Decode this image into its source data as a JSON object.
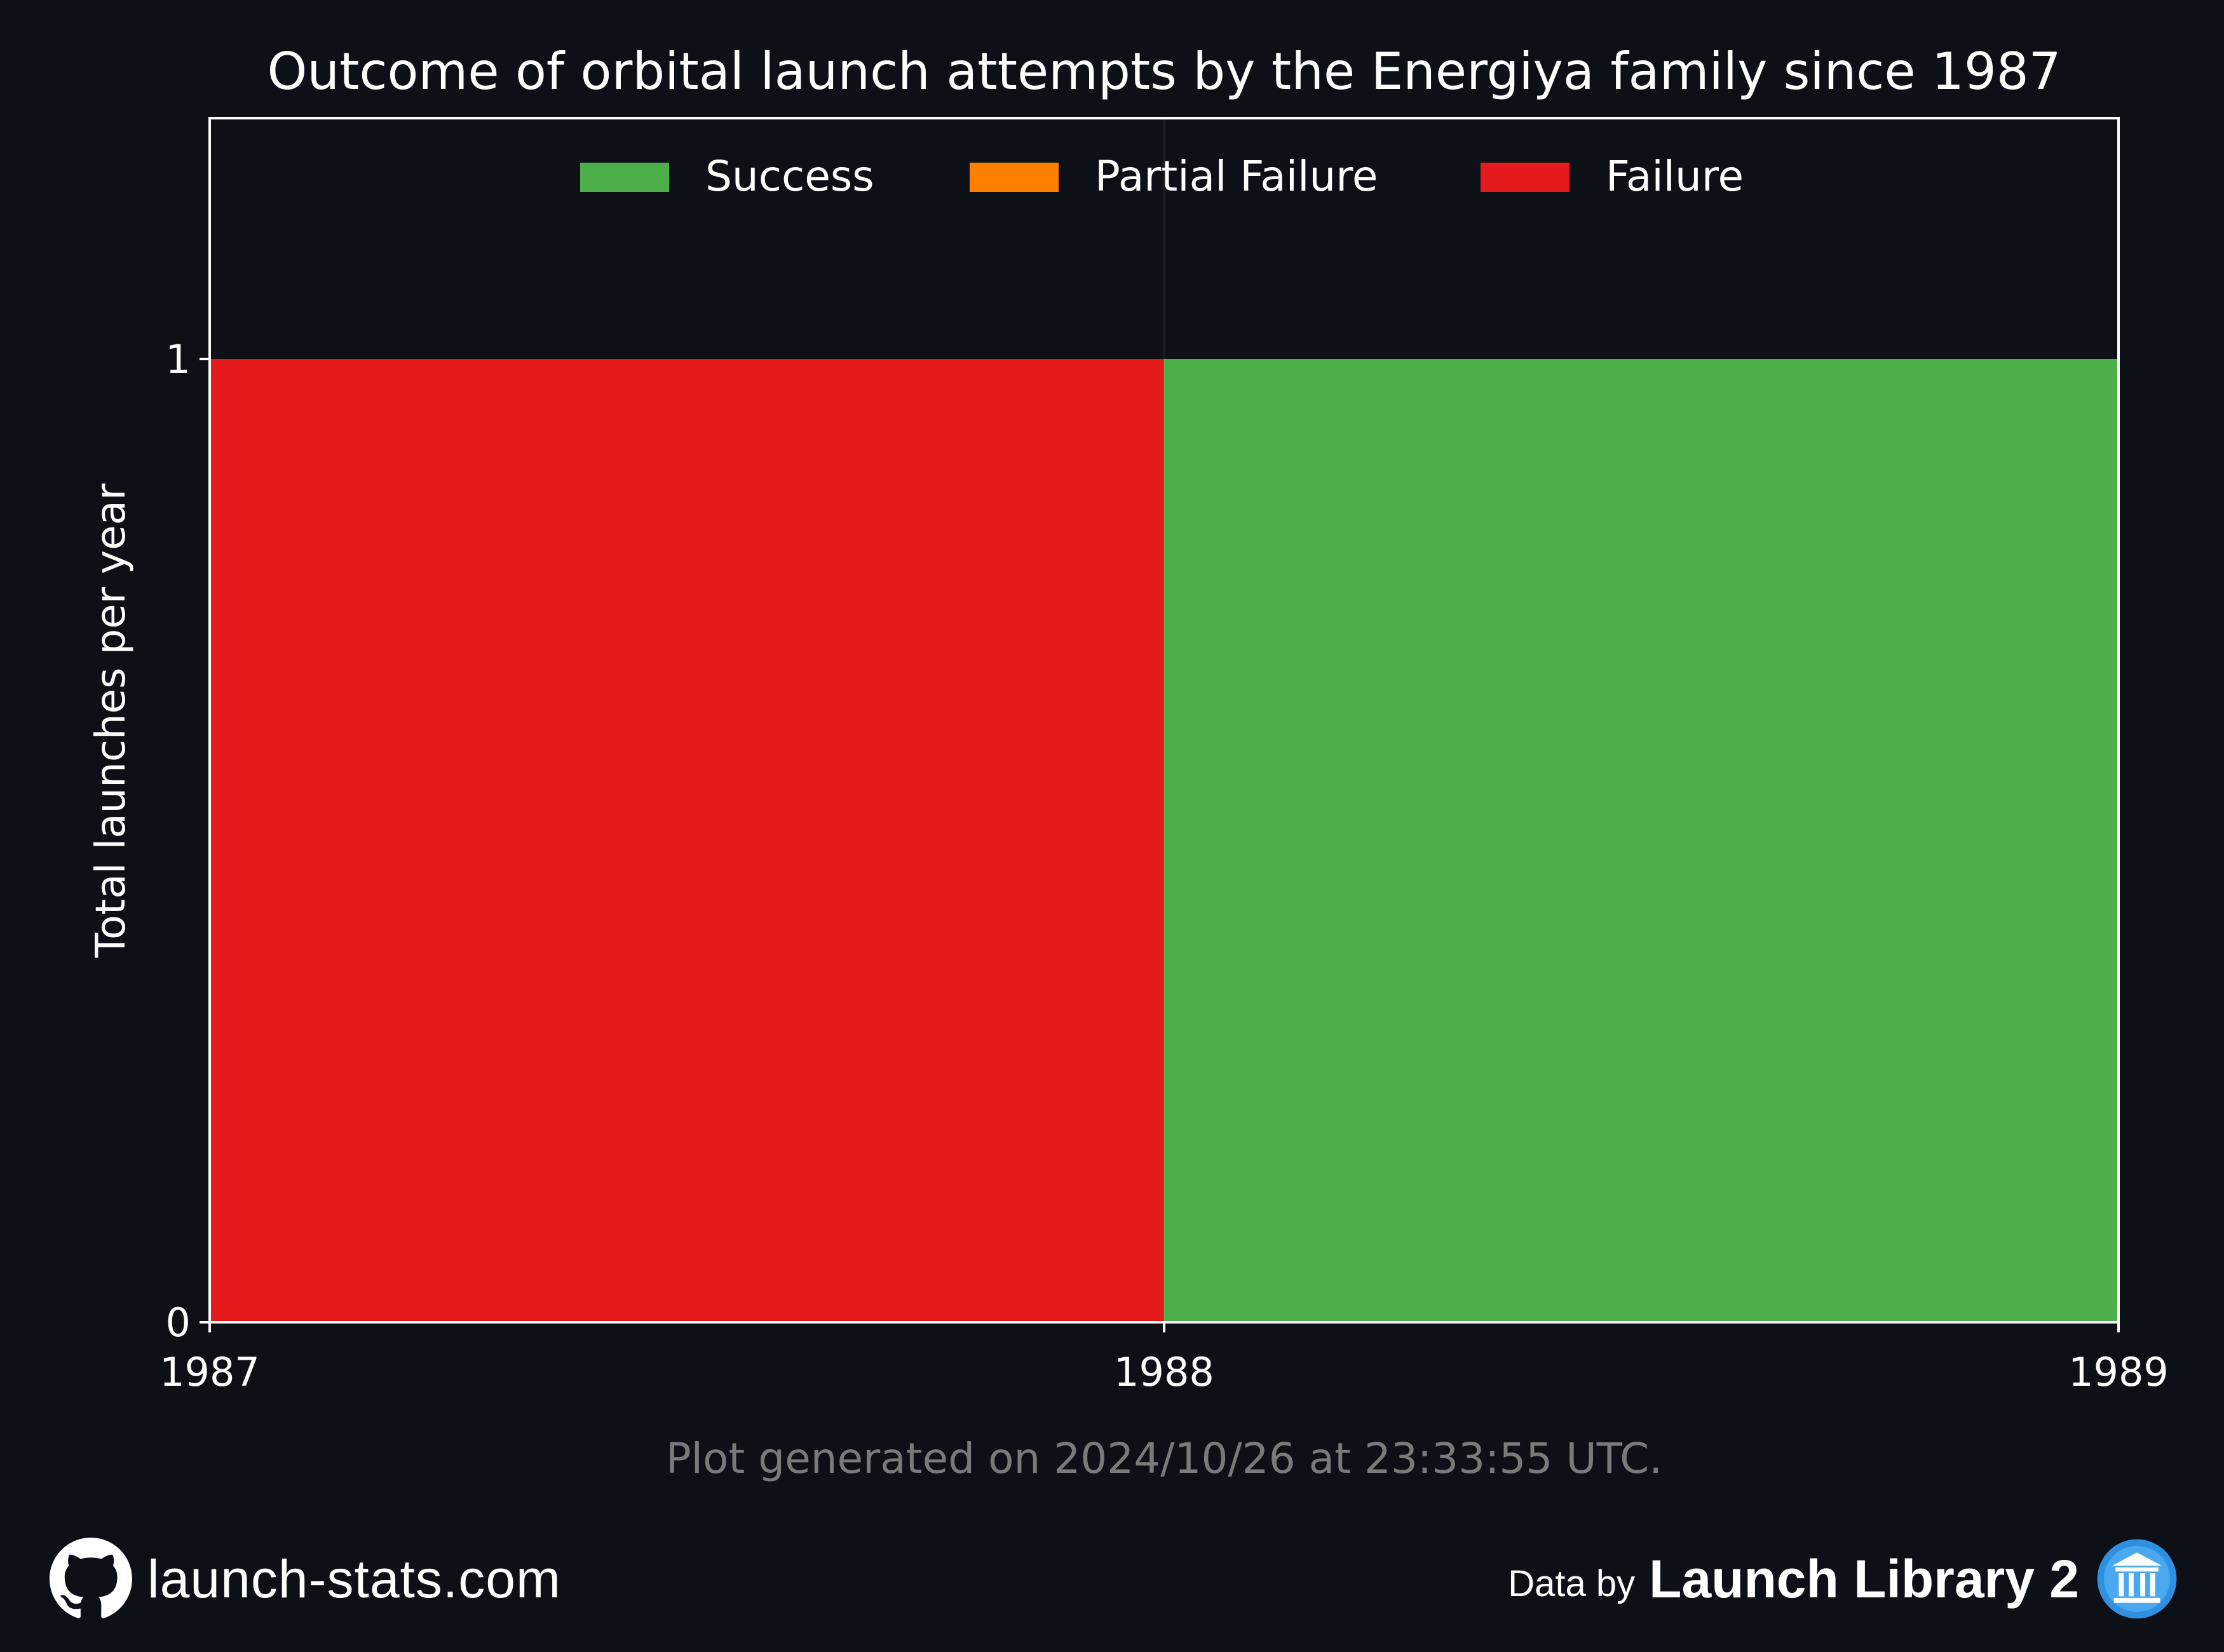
{
  "chart_data": {
    "type": "bar",
    "title": "Outcome of orbital launch attempts by the Energiya family since 1987",
    "xlabel": "",
    "ylabel": "Total launches per year",
    "categories": [
      "1987",
      "1988"
    ],
    "x_ticks": [
      "1987",
      "1988",
      "1989"
    ],
    "y_ticks": [
      "0",
      "1"
    ],
    "xlim": [
      1987,
      1989
    ],
    "ylim": [
      0,
      1.25
    ],
    "stacked": true,
    "series": [
      {
        "name": "Success",
        "color": "#4daf4a",
        "values": [
          0,
          1
        ]
      },
      {
        "name": "Partial Failure",
        "color": "#ff7f00",
        "values": [
          0,
          0
        ]
      },
      {
        "name": "Failure",
        "color": "#e41a1c",
        "values": [
          1,
          0
        ]
      }
    ],
    "legend_position": "top-center",
    "grid": false
  },
  "footer": {
    "generated": "Plot generated on 2024/10/26 at 23:33:55 UTC.",
    "site": "launch-stats.com",
    "data_by": "Data by",
    "library": "Launch Library 2"
  },
  "icons": {
    "left": "github-icon",
    "right": "launch-library-icon"
  }
}
